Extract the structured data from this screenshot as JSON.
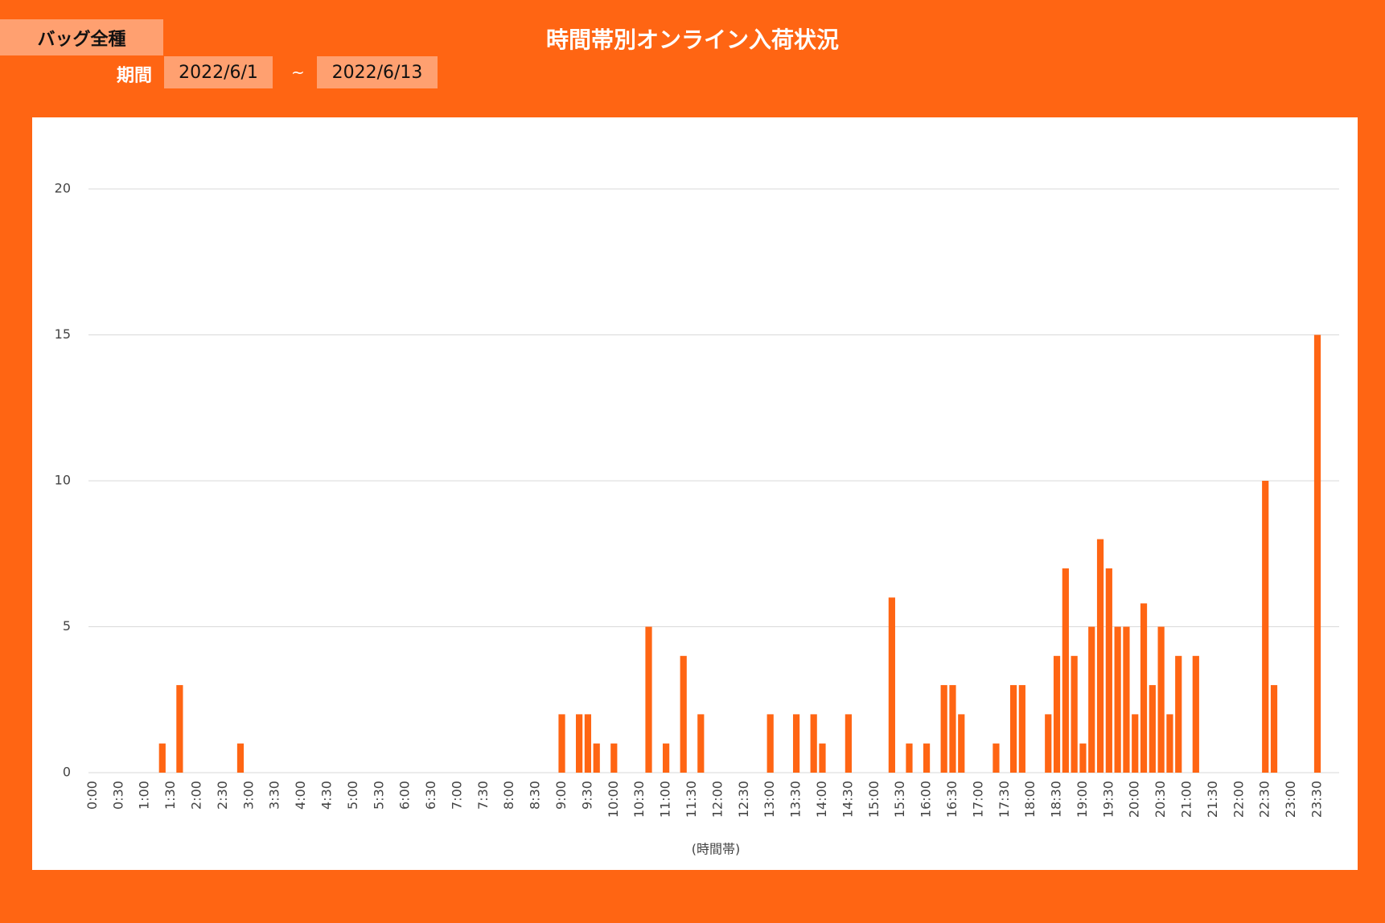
{
  "header": {
    "category": "バッグ全種",
    "title": "時間帯別オンライン入荷状況",
    "period_label": "期間",
    "start": "2022/6/1",
    "separator": "~",
    "end": "2022/6/13"
  },
  "chart_data": {
    "type": "bar",
    "x_label": "(時間帯)",
    "color": "#FF6513",
    "grid": true,
    "categories": [
      "0:00",
      null,
      null,
      "0:30",
      null,
      null,
      "1:00",
      null,
      null,
      "1:30",
      null,
      null,
      "2:00",
      null,
      null,
      "2:30",
      null,
      null,
      "3:00",
      null,
      null,
      "3:30",
      null,
      null,
      "4:00",
      null,
      null,
      "4:30",
      null,
      null,
      "5:00",
      null,
      null,
      "5:30",
      null,
      null,
      "6:00",
      null,
      null,
      "6:30",
      null,
      null,
      "7:00",
      null,
      null,
      "7:30",
      null,
      null,
      "8:00",
      null,
      null,
      "8:30",
      null,
      null,
      "9:00",
      null,
      null,
      "9:30",
      null,
      null,
      "10:00",
      null,
      null,
      "10:30",
      null,
      null,
      "11:00",
      null,
      null,
      "11:30",
      null,
      null,
      "12:00",
      null,
      null,
      "12:30",
      null,
      null,
      "13:00",
      null,
      null,
      "13:30",
      null,
      null,
      "14:00",
      null,
      null,
      "14:30",
      null,
      null,
      "15:00",
      null,
      null,
      "15:30",
      null,
      null,
      "16:00",
      null,
      null,
      "16:30",
      null,
      null,
      "17:00",
      null,
      null,
      "17:30",
      null,
      null,
      "18:00",
      null,
      null,
      "18:30",
      null,
      null,
      "19:00",
      null,
      null,
      "19:30",
      null,
      null,
      "20:00",
      null,
      null,
      "20:30",
      null,
      null,
      "21:00",
      null,
      null,
      "21:30",
      null,
      null,
      "22:00",
      null,
      null,
      "22:30",
      null,
      null,
      "23:00",
      null,
      null,
      "23:30",
      null,
      null
    ],
    "values": [
      0,
      0,
      0,
      0,
      0,
      0,
      0,
      0,
      1,
      0,
      3,
      0,
      0,
      0,
      0,
      0,
      0,
      1,
      0,
      0,
      0,
      0,
      0,
      0,
      0,
      0,
      0,
      0,
      0,
      0,
      0,
      0,
      0,
      0,
      0,
      0,
      0,
      0,
      0,
      0,
      0,
      0,
      0,
      0,
      0,
      0,
      0,
      0,
      0,
      0,
      0,
      0,
      0,
      0,
      2,
      0,
      2,
      2,
      1,
      0,
      1,
      0,
      0,
      0,
      5,
      0,
      1,
      0,
      4,
      0,
      2,
      0,
      0,
      0,
      0,
      0,
      0,
      0,
      2,
      0,
      0,
      2,
      0,
      2,
      1,
      0,
      0,
      2,
      0,
      0,
      0,
      0,
      6,
      0,
      1,
      0,
      1,
      0,
      3,
      3,
      2,
      0,
      0,
      0,
      1,
      0,
      3,
      3,
      0,
      0,
      2,
      4,
      7,
      4,
      1,
      5,
      8,
      7,
      5,
      5,
      2,
      5.8,
      3,
      5,
      2,
      4,
      0,
      4,
      0,
      0,
      0,
      0,
      0,
      0,
      0,
      10,
      3,
      0,
      0,
      0,
      0,
      15,
      0,
      0
    ],
    "ylim": [
      0,
      20
    ],
    "yticks": [
      0,
      5,
      10,
      15,
      20
    ]
  }
}
